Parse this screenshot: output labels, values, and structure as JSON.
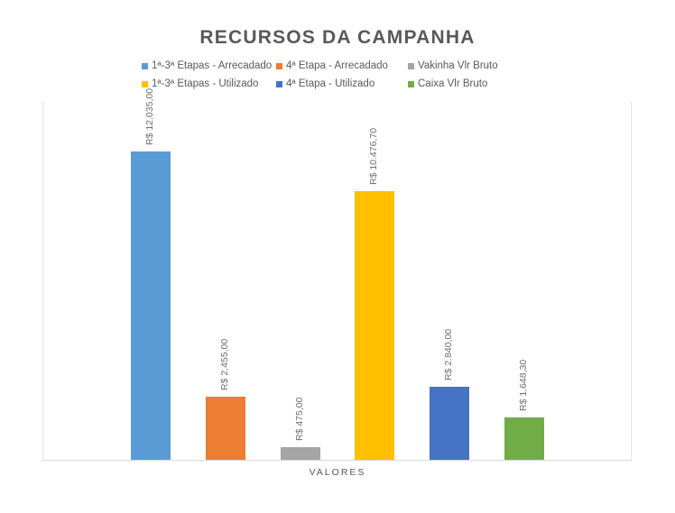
{
  "chart_data": {
    "type": "bar",
    "title": "RECURSOS DA CAMPANHA",
    "xlabel": "VALORES",
    "ylabel": "",
    "categories": [
      "VALORES"
    ],
    "ylim": [
      0,
      14000
    ],
    "grid": false,
    "legend_position": "top",
    "series": [
      {
        "name": "1ª-3ª Etapas - Arrecadado",
        "values": [
          12035.0
        ],
        "label": "R$ 12.035,00",
        "color": "#5b9bd5"
      },
      {
        "name": "4ª Etapa - Arrecadado",
        "values": [
          2455.0
        ],
        "label": "R$ 2.455,00",
        "color": "#ed7d31"
      },
      {
        "name": "Vakinha Vlr Bruto",
        "values": [
          475.0
        ],
        "label": "R$ 475,00",
        "color": "#a5a5a5"
      },
      {
        "name": "1ª-3ª Etapas - Utilizado",
        "values": [
          10476.7
        ],
        "label": "R$ 10.476,70",
        "color": "#ffc000"
      },
      {
        "name": "4ª Etapa - Utilizado",
        "values": [
          2840.0
        ],
        "label": "R$ 2.840,00",
        "color": "#4472c4"
      },
      {
        "name": "Caixa Vlr Bruto",
        "values": [
          1648.3
        ],
        "label": "R$ 1.648,30",
        "color": "#70ad47"
      }
    ]
  },
  "legend": {
    "items": [
      {
        "label": "1ª-3ª Etapas - Arrecadado",
        "color": "#5b9bd5"
      },
      {
        "label": "4ª Etapa - Arrecadado",
        "color": "#ed7d31"
      },
      {
        "label": "Vakinha Vlr Bruto",
        "color": "#a5a5a5"
      },
      {
        "label": "1ª-3ª Etapas - Utilizado",
        "color": "#ffc000"
      },
      {
        "label": "4ª Etapa - Utilizado",
        "color": "#4472c4"
      },
      {
        "label": "Caixa Vlr Bruto",
        "color": "#70ad47"
      }
    ]
  }
}
